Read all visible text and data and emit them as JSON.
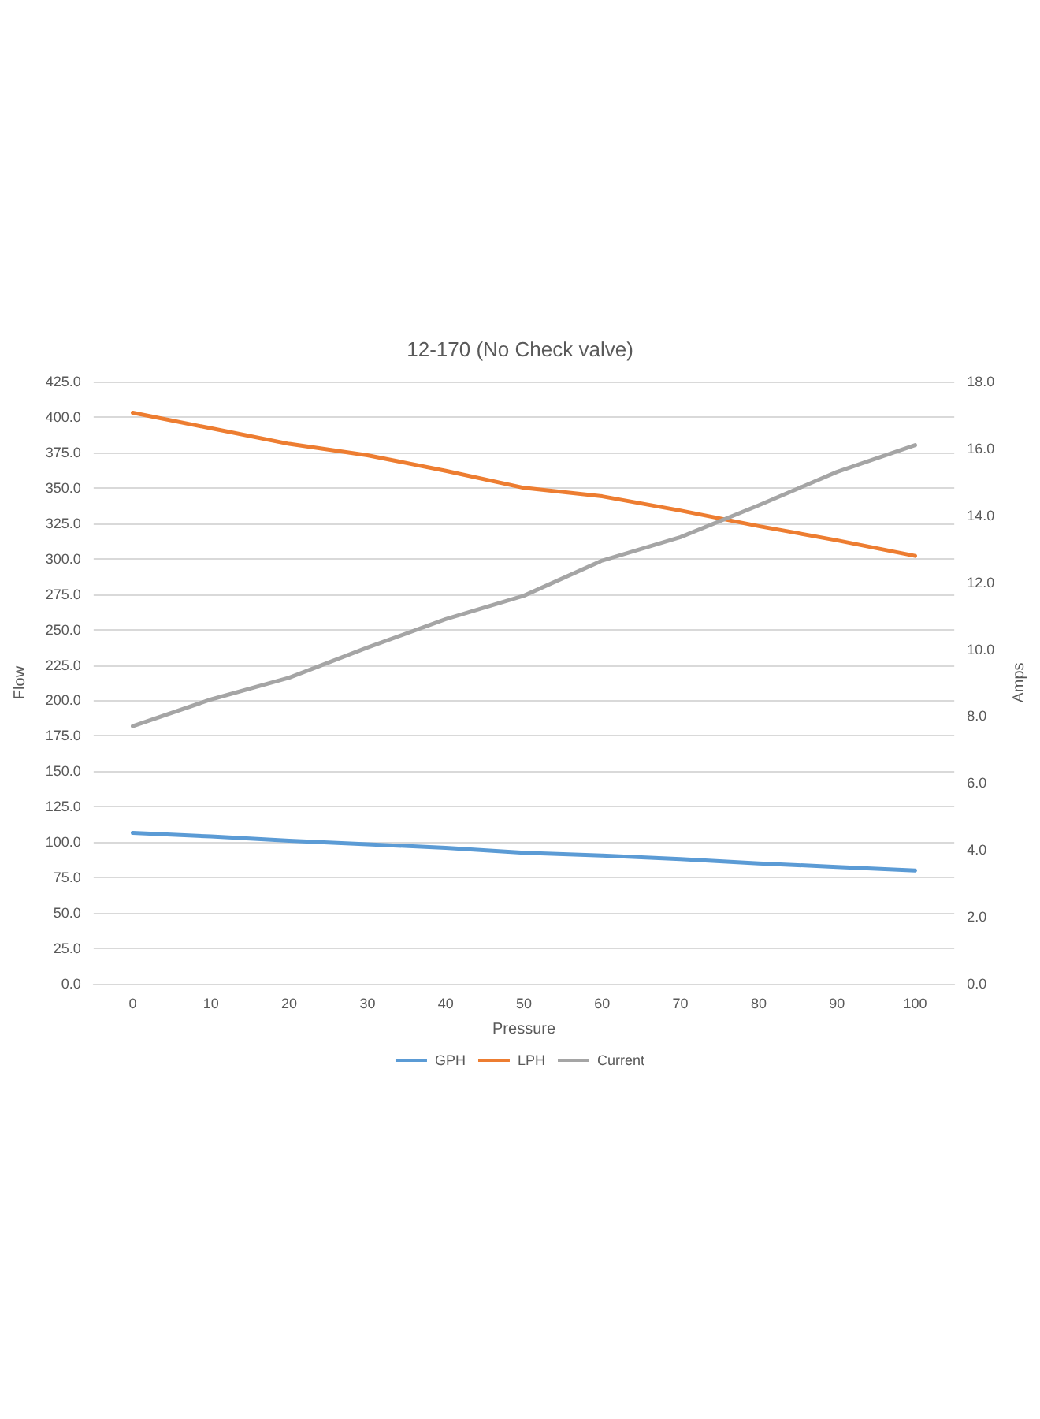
{
  "chart_data": {
    "type": "line",
    "title": "12-170 (No Check valve)",
    "xlabel": "Pressure",
    "ylabel": "Flow",
    "y2label": "Amps",
    "categories": [
      "0",
      "10",
      "20",
      "30",
      "40",
      "50",
      "60",
      "70",
      "80",
      "90",
      "100"
    ],
    "series": [
      {
        "name": "GPH",
        "color": "#5b9bd5",
        "values": [
          106.5,
          104,
          101,
          98.5,
          96,
          92.5,
          90.5,
          88,
          85,
          82.5,
          80
        ]
      },
      {
        "name": "LPH",
        "color": "#ed7d31",
        "values": [
          403,
          392,
          381,
          373,
          362,
          350,
          344,
          334,
          323,
          313,
          302
        ]
      },
      {
        "name": "Current",
        "color": "#a5a5a5",
        "axis": "y2",
        "values": [
          7.7,
          8.5,
          9.15,
          10.05,
          10.9,
          11.6,
          12.65,
          13.35,
          14.3,
          15.3,
          16.1
        ]
      }
    ],
    "ylim": [
      0,
      425
    ],
    "yticks": [
      {
        "value": 0,
        "label": "0.0"
      },
      {
        "value": 25,
        "label": "25.0"
      },
      {
        "value": 50,
        "label": "50.0"
      },
      {
        "value": 75,
        "label": "75.0"
      },
      {
        "value": 100,
        "label": "100.0"
      },
      {
        "value": 125,
        "label": "125.0"
      },
      {
        "value": 150,
        "label": "150.0"
      },
      {
        "value": 175,
        "label": "175.0"
      },
      {
        "value": 200,
        "label": "200.0"
      },
      {
        "value": 225,
        "label": "225.0"
      },
      {
        "value": 250,
        "label": "250.0"
      },
      {
        "value": 275,
        "label": "275.0"
      },
      {
        "value": 300,
        "label": "300.0"
      },
      {
        "value": 325,
        "label": "325.0"
      },
      {
        "value": 350,
        "label": "350.0"
      },
      {
        "value": 375,
        "label": "375.0"
      },
      {
        "value": 400,
        "label": "400.0"
      },
      {
        "value": 425,
        "label": "425.0"
      }
    ],
    "y2lim": [
      0,
      18
    ],
    "y2ticks": [
      {
        "value": 0,
        "label": "0.0"
      },
      {
        "value": 2,
        "label": "2.0"
      },
      {
        "value": 4,
        "label": "4.0"
      },
      {
        "value": 6,
        "label": "6.0"
      },
      {
        "value": 8,
        "label": "8.0"
      },
      {
        "value": 10,
        "label": "10.0"
      },
      {
        "value": 12,
        "label": "12.0"
      },
      {
        "value": 14,
        "label": "14.0"
      },
      {
        "value": 16,
        "label": "16.0"
      },
      {
        "value": 18,
        "label": "18.0"
      }
    ],
    "grid": "y",
    "legend": "bottom",
    "marker": "none",
    "line_style": "solid"
  }
}
